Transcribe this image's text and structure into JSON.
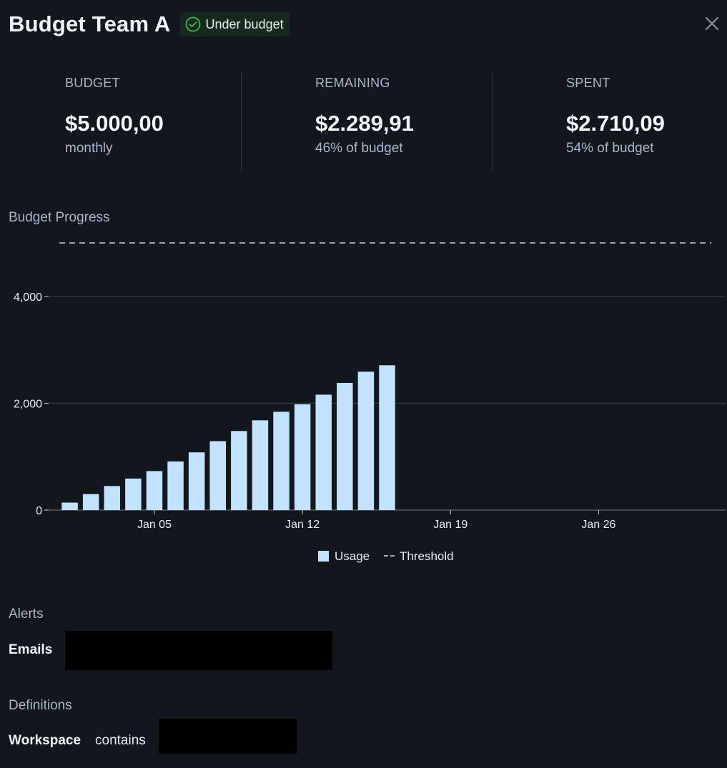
{
  "header": {
    "title": "Budget Team A",
    "status_badge": "Under budget",
    "status_color": "#3fb950",
    "status_icon": "check-circle-icon",
    "close_icon": "close-icon"
  },
  "stats": [
    {
      "label": "BUDGET",
      "value": "$5.000,00",
      "sub": "monthly"
    },
    {
      "label": "REMAINING",
      "value": "$2.289,91",
      "sub": "46% of budget"
    },
    {
      "label": "SPENT",
      "value": "$2.710,09",
      "sub": "54% of budget"
    }
  ],
  "budget_progress": {
    "section_label": "Budget Progress"
  },
  "chart_data": {
    "type": "bar",
    "y_ticks": [
      {
        "value": 0,
        "label": "0"
      },
      {
        "value": 2000,
        "label": "2,000"
      },
      {
        "value": 4000,
        "label": "4,000"
      }
    ],
    "x_ticks": [
      {
        "date": "2025-01-05",
        "label": "Jan 05"
      },
      {
        "date": "2025-01-12",
        "label": "Jan 12"
      },
      {
        "date": "2025-01-19",
        "label": "Jan 19"
      },
      {
        "date": "2025-01-26",
        "label": "Jan 26"
      }
    ],
    "x_range": [
      "2024-12-31",
      "2025-02-01"
    ],
    "ylim": [
      0,
      5000
    ],
    "grid": true,
    "legend_position": "bottom-center",
    "series": [
      {
        "name": "Usage",
        "color": "#c2e3ff",
        "x": [
          "2025-01-01",
          "2025-01-02",
          "2025-01-03",
          "2025-01-04",
          "2025-01-05",
          "2025-01-06",
          "2025-01-07",
          "2025-01-08",
          "2025-01-09",
          "2025-01-10",
          "2025-01-11",
          "2025-01-12",
          "2025-01-13",
          "2025-01-14",
          "2025-01-15",
          "2025-01-16"
        ],
        "values": [
          140,
          300,
          450,
          590,
          730,
          910,
          1080,
          1290,
          1480,
          1680,
          1840,
          1980,
          2160,
          2380,
          2590,
          2710
        ]
      }
    ],
    "threshold": {
      "name": "Threshold",
      "value": 5000,
      "style": "dashed",
      "color": "#c9d1d9"
    }
  },
  "alerts": {
    "section_label": "Alerts",
    "emails_label": "Emails"
  },
  "definitions": {
    "section_label": "Definitions",
    "field": "Workspace",
    "operator": "contains"
  }
}
